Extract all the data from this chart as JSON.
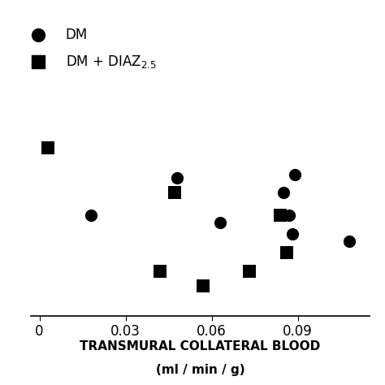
{
  "dm_x": [
    0.018,
    0.048,
    0.063,
    0.085,
    0.087,
    0.088,
    0.089,
    0.108
  ],
  "dm_y": [
    62,
    72,
    60,
    68,
    62,
    57,
    73,
    55
  ],
  "diaz_x": [
    0.003,
    0.047,
    0.042,
    0.057,
    0.073,
    0.084,
    0.086
  ],
  "diaz_y": [
    80,
    68,
    47,
    43,
    47,
    62,
    52
  ],
  "xlim": [
    -0.003,
    0.115
  ],
  "ylim": [
    35,
    95
  ],
  "xticks": [
    0,
    0.03,
    0.06,
    0.09
  ],
  "xticklabels": [
    "0",
    "0.03",
    "0.06",
    "0.09"
  ],
  "xlabel_line1": "TRANSMURAL COLLATERAL BLOOD",
  "xlabel_line2": "(ml / min / g)",
  "legend_dm": "DM",
  "marker_size": 120,
  "marker_color": "black",
  "background_color": "#ffffff"
}
